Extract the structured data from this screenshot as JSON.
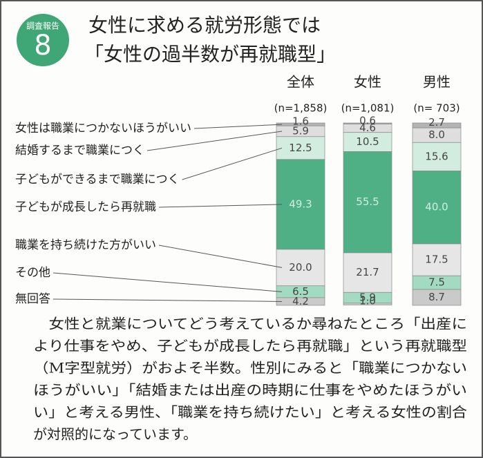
{
  "badge": {
    "label": "調査報告",
    "number": "8"
  },
  "chart_data": {
    "type": "stacked_bar",
    "title": [
      "女性に求める就労形態では",
      "「女性の過半数が再就職型」"
    ],
    "categories": [
      "全体",
      "女性",
      "男性"
    ],
    "n_labels": [
      "(n=1,858)",
      "(n=1,081)",
      "(n= 703)"
    ],
    "ylim": [
      0,
      100
    ],
    "series": [
      {
        "name": "女性は職業につかないほうがいい",
        "color": "#b4b4b4",
        "values": [
          1.6,
          0.6,
          2.7
        ],
        "value_labels": [
          "1.6",
          "0.6",
          "2.7"
        ]
      },
      {
        "name": "結婚するまで職業につく",
        "color": "#dedede",
        "values": [
          5.9,
          4.6,
          8.0
        ],
        "value_labels": [
          "5.9",
          "4.6",
          "8.0"
        ]
      },
      {
        "name": "子どもができるまで職業につく",
        "color": "#d3ece0",
        "values": [
          12.5,
          10.5,
          15.6
        ],
        "value_labels": [
          "12.5",
          "10.5",
          "15.6"
        ]
      },
      {
        "name": "子どもが成長したら再就職",
        "color": "#4fb086",
        "values": [
          49.3,
          55.5,
          40.0
        ],
        "value_labels": [
          "49.3",
          "55.5",
          "40.0"
        ]
      },
      {
        "name": "職業を持ち続けた方がいい",
        "color": "#e6e6e6",
        "values": [
          20.0,
          21.7,
          17.5
        ],
        "value_labels": [
          "20.0",
          "21.7",
          "17.5"
        ]
      },
      {
        "name": "その他",
        "color": "#a3dbc2",
        "values": [
          6.5,
          5.9,
          7.5
        ],
        "value_labels": [
          "6.5",
          "5.9",
          "7.5"
        ]
      },
      {
        "name": "無回答",
        "color": "#cacaca",
        "values": [
          4.2,
          1.0,
          8.7
        ],
        "value_labels": [
          "4.2",
          "1.0",
          "8.7"
        ]
      }
    ]
  },
  "body": [
    "　女性と就業についてどう考えているか尋ねたところ「出産に",
    "より仕事をやめ、子どもが成長したら再就職」という再就職型",
    "（M字型就労）がおよそ半数。性別にみると「職業につかない",
    "ほうがいい」「結婚または出産の時期に仕事をやめたほうがい",
    "い」と考える男性、「職業を持ち続けたい」と考える女性の割合",
    "が対照的になっています。"
  ]
}
